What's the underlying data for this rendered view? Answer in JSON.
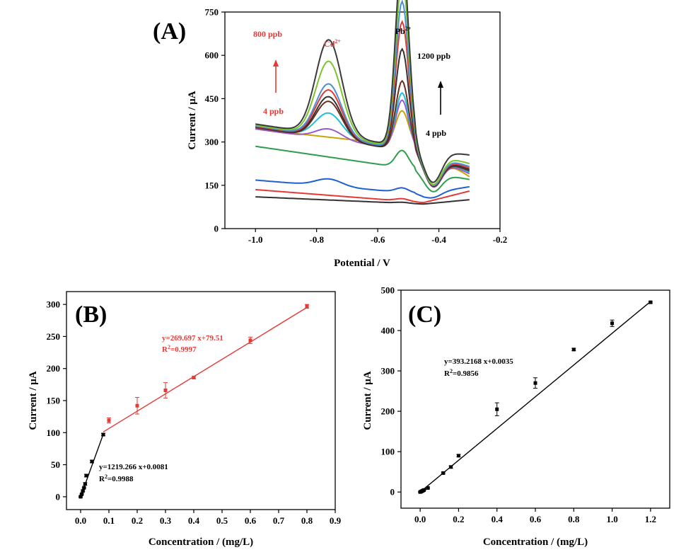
{
  "figure": {
    "colors": {
      "axis": "#000000",
      "accent": "#e53935",
      "fit_black": "#000000",
      "fit_red": "#e53935"
    }
  },
  "chart_data": [
    {
      "id": "A",
      "type": "line",
      "panel_label": "(A)",
      "title": "",
      "xlabel": "Potential / V",
      "ylabel": "Current / μA",
      "xlim": [
        -1.1,
        -0.2
      ],
      "ylim": [
        0,
        750
      ],
      "xticks": [
        -1.0,
        -0.8,
        -0.6,
        -0.4,
        -0.2
      ],
      "xtick_labels": [
        "-1.0",
        "-0.8",
        "-0.6",
        "-0.4",
        "-0.2"
      ],
      "yticks": [
        0,
        150,
        300,
        450,
        600,
        750
      ],
      "peak_labels": [
        {
          "name": "cd-peak-label",
          "ion": "Cd",
          "charge": "2+"
        },
        {
          "name": "pb-peak-label",
          "ion": "Pb",
          "charge": "2+"
        }
      ],
      "annotations": {
        "cd_high": "800 ppb",
        "cd_low": "4 ppb",
        "pb_high": "1200 ppb",
        "pb_low": "4 ppb"
      },
      "series": [
        {
          "name": "curve-1",
          "color": "#333333",
          "base_start": 110,
          "base_end": 85,
          "cd_peak": 0,
          "pb_peak": 3,
          "end": 100
        },
        {
          "name": "curve-2",
          "color": "#e53935",
          "base_start": 135,
          "base_end": 90,
          "cd_peak": 0,
          "pb_peak": 8,
          "end": 130
        },
        {
          "name": "curve-3",
          "color": "#1e5fd1",
          "base_start": 168,
          "base_end": 120,
          "cd_peak": 25,
          "pb_peak": 15,
          "end": 145
        },
        {
          "name": "curve-4",
          "color": "#2e9e4e",
          "base_start": 285,
          "base_end": 200,
          "cd_peak": 0,
          "pb_peak": 60,
          "end": 170
        },
        {
          "name": "curve-5",
          "color": "#c9a400",
          "base_start": 345,
          "base_end": 280,
          "cd_peak": 0,
          "pb_peak": 120,
          "end": 180
        },
        {
          "name": "curve-6",
          "color": "#9b59d0",
          "base_start": 345,
          "base_end": 265,
          "cd_peak": 35,
          "pb_peak": 170,
          "end": 190
        },
        {
          "name": "curve-7",
          "color": "#1fc0d8",
          "base_start": 350,
          "base_end": 270,
          "cd_peak": 85,
          "pb_peak": 190,
          "end": 195
        },
        {
          "name": "curve-8",
          "color": "#6b2f1a",
          "base_start": 350,
          "base_end": 260,
          "cd_peak": 130,
          "pb_peak": 240,
          "end": 200
        },
        {
          "name": "curve-9",
          "color": "#333333",
          "base_start": 352,
          "base_end": 260,
          "cd_peak": 145,
          "pb_peak": 350,
          "end": 205
        },
        {
          "name": "curve-10",
          "color": "#e53935",
          "base_start": 354,
          "base_end": 265,
          "cd_peak": 165,
          "pb_peak": 440,
          "end": 210
        },
        {
          "name": "curve-11",
          "color": "#4a90d9",
          "base_start": 356,
          "base_end": 265,
          "cd_peak": 185,
          "pb_peak": 510,
          "end": 215
        },
        {
          "name": "curve-12",
          "color": "#7bc62d",
          "base_start": 358,
          "base_end": 270,
          "cd_peak": 260,
          "pb_peak": 585,
          "end": 225
        },
        {
          "name": "curve-13",
          "color": "#3a3a3a",
          "base_start": 362,
          "base_end": 275,
          "cd_peak": 330,
          "pb_peak": 660,
          "end": 255
        }
      ]
    },
    {
      "id": "B",
      "type": "scatter",
      "panel_label": "(B)",
      "title": "",
      "xlabel": "Concentration / (mg/L)",
      "ylabel": "Current / μA",
      "xlim": [
        -0.05,
        0.9
      ],
      "ylim": [
        -20,
        320
      ],
      "xticks": [
        0.0,
        0.1,
        0.2,
        0.3,
        0.4,
        0.5,
        0.6,
        0.7,
        0.8,
        0.9
      ],
      "xtick_labels": [
        "0.0",
        "0.1",
        "0.2",
        "0.3",
        "0.4",
        "0.5",
        "0.6",
        "0.7",
        "0.8",
        "0.9"
      ],
      "yticks": [
        0,
        50,
        100,
        150,
        200,
        250,
        300
      ],
      "series": [
        {
          "name": "low-range",
          "color": "#000000",
          "x": [
            0.0,
            0.004,
            0.008,
            0.012,
            0.016,
            0.02,
            0.04,
            0.08
          ],
          "y": [
            0,
            4,
            9,
            14,
            20,
            33,
            55,
            97
          ],
          "err": [
            1,
            1,
            1,
            1,
            2,
            2,
            2,
            2
          ],
          "fit": {
            "x": [
              0.0,
              0.08
            ],
            "y": [
              0,
              97.5
            ]
          },
          "equation": "y=1219.266 x+0.0081",
          "r2_prefix": "R",
          "r2_sup": "2",
          "r2_value": "=0.9988"
        },
        {
          "name": "high-range",
          "color": "#e53935",
          "x": [
            0.1,
            0.2,
            0.3,
            0.4,
            0.6,
            0.8
          ],
          "y": [
            119,
            142,
            166,
            186,
            244,
            297
          ],
          "err": [
            4,
            13,
            12,
            2,
            5,
            3
          ],
          "fit": {
            "x": [
              0.08,
              0.8
            ],
            "y": [
              101.1,
              295.3
            ]
          },
          "equation": "y=269.697 x+79.51",
          "r2_prefix": "R",
          "r2_sup": "2",
          "r2_value": "=0.9997"
        }
      ]
    },
    {
      "id": "C",
      "type": "scatter",
      "panel_label": "(C)",
      "title": "",
      "xlabel": "Concentration / (mg/L)",
      "ylabel": "Current / μA",
      "xlim": [
        -0.1,
        1.3
      ],
      "ylim": [
        -40,
        500
      ],
      "xticks": [
        0.0,
        0.2,
        0.4,
        0.6,
        0.8,
        1.0,
        1.2
      ],
      "xtick_labels": [
        "0.0",
        "0.2",
        "0.4",
        "0.6",
        "0.8",
        "1.0",
        "1.2"
      ],
      "yticks": [
        0,
        100,
        200,
        300,
        400,
        500
      ],
      "series": [
        {
          "name": "pb-calibration",
          "color": "#000000",
          "x": [
            0.0,
            0.004,
            0.008,
            0.012,
            0.016,
            0.02,
            0.04,
            0.12,
            0.16,
            0.2,
            0.4,
            0.6,
            0.8,
            1.0,
            1.2
          ],
          "y": [
            0,
            1,
            2,
            3,
            4,
            5,
            10,
            47,
            62,
            90,
            205,
            270,
            353,
            418,
            470
          ],
          "err": [
            1,
            1,
            1,
            1,
            1,
            1,
            2,
            2,
            3,
            3,
            16,
            13,
            3,
            8,
            2
          ],
          "fit": {
            "x": [
              0.0,
              1.2
            ],
            "y": [
              0,
              471.9
            ]
          },
          "equation": "y=393.2168 x+0.0035",
          "r2_prefix": "R",
          "r2_sup": "2",
          "r2_value": "=0.9856"
        }
      ]
    }
  ]
}
